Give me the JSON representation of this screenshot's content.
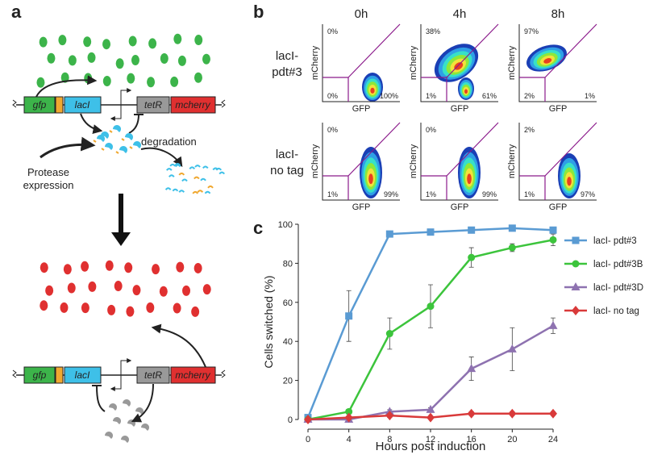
{
  "panel_labels": [
    "a",
    "b",
    "c"
  ],
  "diagram": {
    "top_construct": [
      "gfp",
      "lacI",
      "tetR",
      "mcherry"
    ],
    "bottom_construct": [
      "gfp",
      "lacI",
      "tetR",
      "mcherry"
    ],
    "degradation_label": "degradation",
    "protease_label": [
      "Protease",
      "expression"
    ]
  },
  "flow": {
    "columns": [
      "0h",
      "4h",
      "8h"
    ],
    "rows": [
      {
        "label": [
          "lacI-",
          "pdt#3"
        ],
        "plots": [
          {
            "top_left": "0%",
            "bottom_left": "0%",
            "bottom_right": "100%"
          },
          {
            "top_left": "38%",
            "bottom_left": "1%",
            "bottom_right": "61%"
          },
          {
            "top_left": "97%",
            "bottom_left": "2%",
            "bottom_right": "1%"
          }
        ]
      },
      {
        "label": [
          "lacI-",
          "no tag"
        ],
        "plots": [
          {
            "top_left": "0%",
            "bottom_left": "1%",
            "bottom_right": "99%"
          },
          {
            "top_left": "0%",
            "bottom_left": "1%",
            "bottom_right": "99%"
          },
          {
            "top_left": "2%",
            "bottom_left": "1%",
            "bottom_right": "97%"
          }
        ]
      }
    ],
    "y_label": "mCherry",
    "x_label": "GFP"
  },
  "chart_data": {
    "type": "line",
    "x_label": "Hours post induction",
    "y_label": "Cells switched (%)",
    "x": [
      0,
      4,
      8,
      12,
      16,
      20,
      24
    ],
    "xlim": [
      0,
      24
    ],
    "xticks": [
      0,
      4,
      8,
      12,
      16,
      20,
      24
    ],
    "ylim": [
      0,
      100
    ],
    "yticks": [
      0,
      20,
      40,
      60,
      80,
      100
    ],
    "series": [
      {
        "name": "lacI- pdt#3",
        "color": "#5a9bd3",
        "marker": "square",
        "values": [
          1,
          53,
          95,
          96,
          97,
          98,
          97
        ],
        "errors": [
          1,
          13,
          1,
          1,
          1,
          1,
          1
        ]
      },
      {
        "name": "lacI- pdt#3B",
        "color": "#3cc43c",
        "marker": "circle",
        "values": [
          0,
          4,
          44,
          58,
          83,
          88,
          92
        ],
        "errors": [
          0.5,
          1,
          8,
          11,
          5,
          2,
          3
        ]
      },
      {
        "name": "lacI- pdt#3D",
        "color": "#8e72b0",
        "marker": "triangle",
        "values": [
          0,
          0,
          4,
          5,
          26,
          36,
          48
        ],
        "errors": [
          0.5,
          0.5,
          1,
          1,
          6,
          11,
          4
        ]
      },
      {
        "name": "lacI- no tag",
        "color": "#d93a3a",
        "marker": "diamond",
        "values": [
          0,
          1,
          2,
          1,
          3,
          3,
          3
        ],
        "errors": [
          0.5,
          0.5,
          1,
          0.5,
          1,
          1,
          1
        ]
      }
    ]
  }
}
